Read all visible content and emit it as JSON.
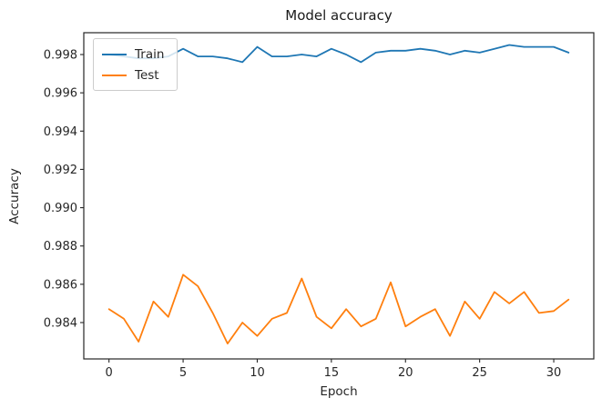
{
  "chart_data": {
    "type": "line",
    "title": "Model accuracy",
    "xlabel": "Epoch",
    "ylabel": "Accuracy",
    "x": [
      0,
      1,
      2,
      3,
      4,
      5,
      6,
      7,
      8,
      9,
      10,
      11,
      12,
      13,
      14,
      15,
      16,
      17,
      18,
      19,
      20,
      21,
      22,
      23,
      24,
      25,
      26,
      27,
      28,
      29,
      30,
      31
    ],
    "series": [
      {
        "name": "Train",
        "color": "#1f77b4",
        "values": [
          0.998,
          0.9979,
          0.9978,
          0.9978,
          0.9979,
          0.9983,
          0.9979,
          0.9979,
          0.9978,
          0.9976,
          0.9984,
          0.9979,
          0.9979,
          0.998,
          0.9979,
          0.9983,
          0.998,
          0.9976,
          0.9981,
          0.9982,
          0.9982,
          0.9983,
          0.9982,
          0.998,
          0.9982,
          0.9981,
          0.9983,
          0.9985,
          0.9984,
          0.9984,
          0.9984,
          0.9981
        ]
      },
      {
        "name": "Test",
        "color": "#ff7f0e",
        "values": [
          0.9847,
          0.9842,
          0.983,
          0.9851,
          0.9843,
          0.9865,
          0.9859,
          0.9845,
          0.9829,
          0.984,
          0.9833,
          0.9842,
          0.9845,
          0.9863,
          0.9843,
          0.9837,
          0.9847,
          0.9838,
          0.9842,
          0.9861,
          0.9838,
          0.9843,
          0.9847,
          0.9833,
          0.9851,
          0.9842,
          0.9856,
          0.985,
          0.9856,
          0.9845,
          0.9846,
          0.9852
        ]
      }
    ],
    "xlim": [
      -1.7,
      32.7
    ],
    "ylim": [
      0.9821,
      0.99914
    ],
    "xticklabels": [
      "0",
      "5",
      "10",
      "15",
      "20",
      "25",
      "30"
    ],
    "yticklabels": [
      "0.984",
      "0.986",
      "0.988",
      "0.990",
      "0.992",
      "0.994",
      "0.996",
      "0.998"
    ],
    "grid": false,
    "legend_position": "upper-left",
    "axis_color": "#262626",
    "text_color": "#262626",
    "background": "#ffffff"
  }
}
